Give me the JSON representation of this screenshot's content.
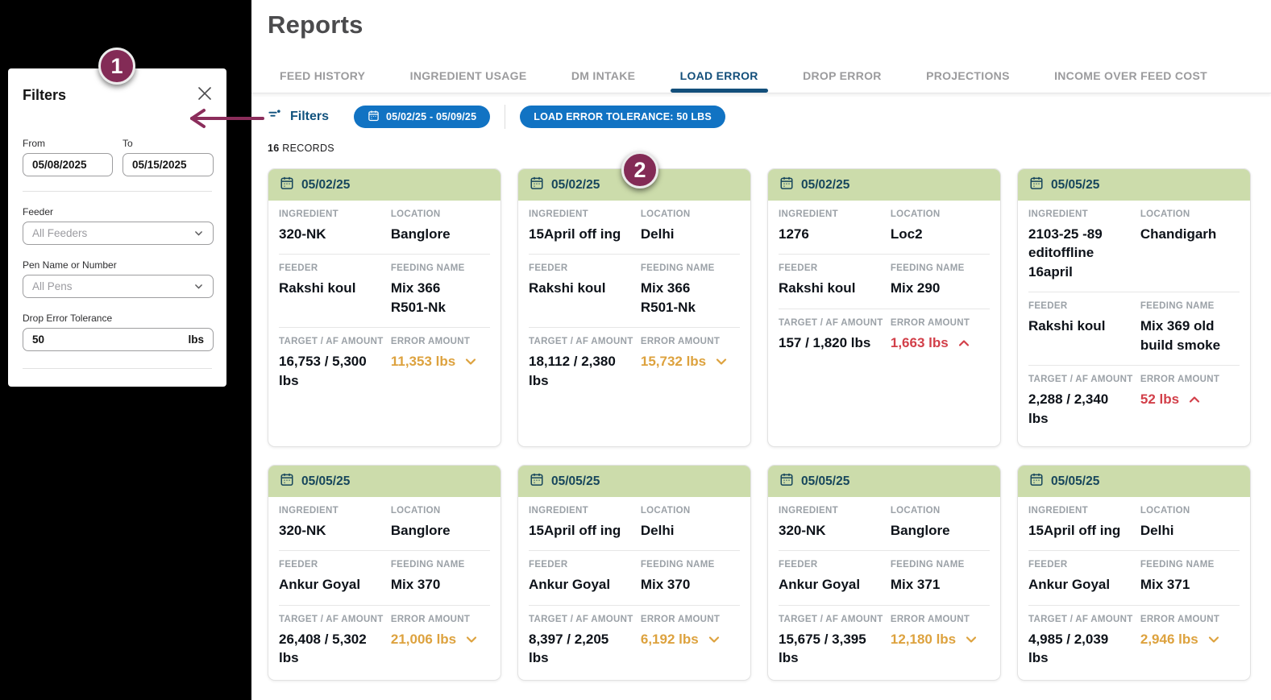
{
  "header": {
    "title": "Reports"
  },
  "tabs": [
    {
      "label": "FEED HISTORY",
      "active": false
    },
    {
      "label": "INGREDIENT USAGE",
      "active": false
    },
    {
      "label": "DM INTAKE",
      "active": false
    },
    {
      "label": "LOAD ERROR",
      "active": true
    },
    {
      "label": "DROP ERROR",
      "active": false
    },
    {
      "label": "PROJECTIONS",
      "active": false
    },
    {
      "label": "INCOME OVER FEED COST",
      "active": false
    }
  ],
  "filter_bar": {
    "filters_label": "Filters",
    "date_range_chip": "05/02/25 - 05/09/25",
    "tolerance_chip": "LOAD ERROR TOLERANCE: 50 LBS"
  },
  "records": {
    "count": "16",
    "label": "RECORDS"
  },
  "card_labels": {
    "ingredient": "INGREDIENT",
    "location": "LOCATION",
    "feeder": "FEEDER",
    "feeding_name": "FEEDING NAME",
    "target_af": "TARGET / AF AMOUNT",
    "error_amount": "ERROR AMOUNT"
  },
  "cards": [
    {
      "date": "05/02/25",
      "ingredient": "320-NK",
      "location": "Banglore",
      "feeder": "Rakshi koul",
      "feeding_name": "Mix 366 R501-Nk",
      "target_af": "16,753 / 5,300 lbs",
      "error_amount": "11,353 lbs",
      "error_direction": "down"
    },
    {
      "date": "05/02/25",
      "ingredient": "15April off ing",
      "location": "Delhi",
      "feeder": "Rakshi koul",
      "feeding_name": "Mix 366 R501-Nk",
      "target_af": "18,112 / 2,380 lbs",
      "error_amount": "15,732 lbs",
      "error_direction": "down"
    },
    {
      "date": "05/02/25",
      "ingredient": "1276",
      "location": "Loc2",
      "feeder": "Rakshi koul",
      "feeding_name": "Mix 290",
      "target_af": "157 / 1,820 lbs",
      "error_amount": "1,663 lbs",
      "error_direction": "up"
    },
    {
      "date": "05/05/25",
      "ingredient": "2103-25 -89 editoffline 16april",
      "location": "Chandigarh",
      "feeder": "Rakshi koul",
      "feeding_name": "Mix 369 old build smoke",
      "target_af": "2,288 / 2,340 lbs",
      "error_amount": "52 lbs",
      "error_direction": "up"
    },
    {
      "date": "05/05/25",
      "ingredient": "320-NK",
      "location": "Banglore",
      "feeder": "Ankur Goyal",
      "feeding_name": "Mix 370",
      "target_af": "26,408 / 5,302 lbs",
      "error_amount": "21,006 lbs",
      "error_direction": "down"
    },
    {
      "date": "05/05/25",
      "ingredient": "15April off ing",
      "location": "Delhi",
      "feeder": "Ankur Goyal",
      "feeding_name": "Mix 370",
      "target_af": "8,397 / 2,205 lbs",
      "error_amount": "6,192 lbs",
      "error_direction": "down"
    },
    {
      "date": "05/05/25",
      "ingredient": "320-NK",
      "location": "Banglore",
      "feeder": "Ankur Goyal",
      "feeding_name": "Mix 371",
      "target_af": "15,675 / 3,395 lbs",
      "error_amount": "12,180 lbs",
      "error_direction": "down"
    },
    {
      "date": "05/05/25",
      "ingredient": "15April off ing",
      "location": "Delhi",
      "feeder": "Ankur Goyal",
      "feeding_name": "Mix 371",
      "target_af": "4,985 / 2,039 lbs",
      "error_amount": "2,946 lbs",
      "error_direction": "down"
    }
  ],
  "filters_panel": {
    "title": "Filters",
    "from_label": "From",
    "from_value": "05/08/2025",
    "to_label": "To",
    "to_value": "05/15/2025",
    "feeder_label": "Feeder",
    "feeder_value": "All Feeders",
    "pen_label": "Pen Name or Number",
    "pen_value": "All Pens",
    "tolerance_label": "Drop Error Tolerance",
    "tolerance_value": "50",
    "tolerance_unit": "lbs"
  },
  "annotations": {
    "step1": "1",
    "step2": "2"
  },
  "colors": {
    "chip_blue": "#1173c3",
    "active_tab_navy": "#134f7b",
    "card_header_green": "#ccdcab",
    "error_down_orange": "#dda23e",
    "error_up_red": "#d23f49",
    "annotation_maroon": "#832b56"
  }
}
